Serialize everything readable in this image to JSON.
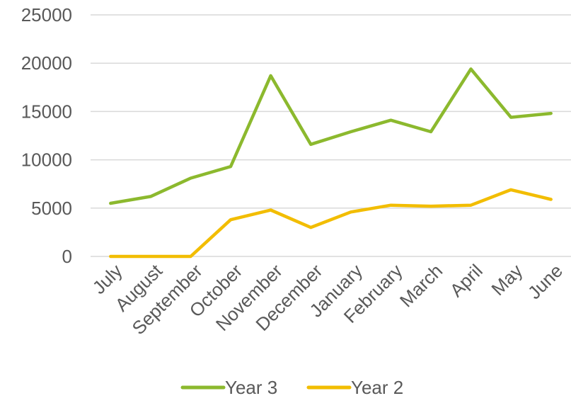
{
  "chart_data": {
    "type": "line",
    "title": "",
    "xlabel": "",
    "ylabel": "",
    "categories": [
      "July",
      "August",
      "September",
      "October",
      "November",
      "December",
      "January",
      "February",
      "March",
      "April",
      "May",
      "June"
    ],
    "ylim": [
      0,
      25000
    ],
    "yticks": [
      0,
      5000,
      10000,
      15000,
      20000,
      25000
    ],
    "grid": true,
    "legend_position": "bottom",
    "series": [
      {
        "name": "Year 3",
        "color": "#8cb92e",
        "values": [
          5500,
          6200,
          8100,
          9300,
          18700,
          11600,
          12900,
          14100,
          12900,
          19400,
          14400,
          14800
        ]
      },
      {
        "name": "Year 2",
        "color": "#f2bd00",
        "values": [
          0,
          0,
          0,
          3800,
          4800,
          3000,
          4600,
          5300,
          5200,
          5300,
          6900,
          5900
        ]
      }
    ]
  }
}
